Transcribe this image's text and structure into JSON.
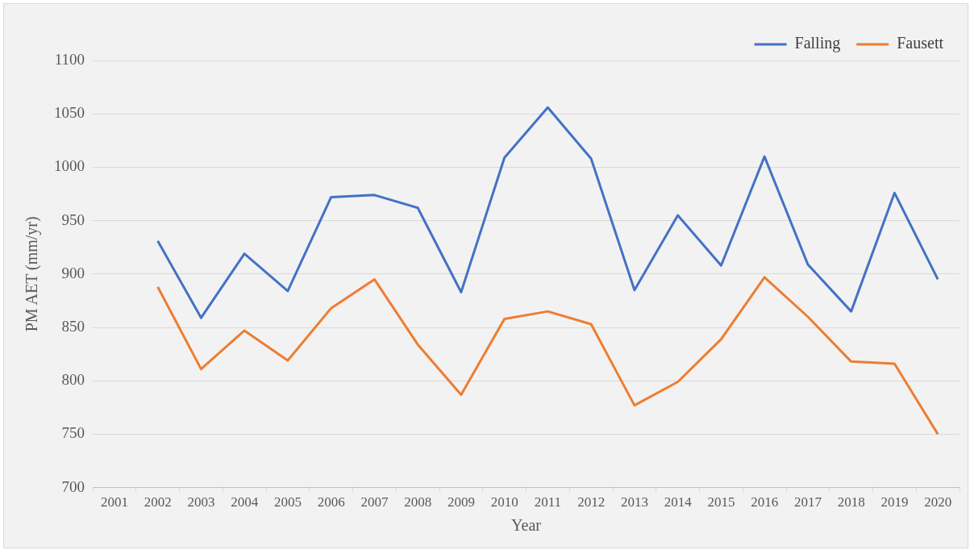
{
  "chart_data": {
    "type": "line",
    "xlabel": "Year",
    "ylabel": "PM AET (mm/yr)",
    "categories": [
      "2001",
      "2002",
      "2003",
      "2004",
      "2005",
      "2006",
      "2007",
      "2008",
      "2009",
      "2010",
      "2011",
      "2012",
      "2013",
      "2014",
      "2015",
      "2016",
      "2017",
      "2018",
      "2019",
      "2020"
    ],
    "series": [
      {
        "name": "Falling",
        "color": "#4472c4",
        "values": [
          null,
          931,
          859,
          919,
          884,
          972,
          974,
          962,
          883,
          1009,
          1056,
          1008,
          885,
          955,
          908,
          1010,
          909,
          865,
          976,
          895
        ]
      },
      {
        "name": "Fausett",
        "color": "#ed7d31",
        "values": [
          null,
          888,
          811,
          847,
          819,
          868,
          895,
          834,
          787,
          858,
          865,
          853,
          777,
          799,
          839,
          897,
          860,
          818,
          816,
          750
        ]
      }
    ],
    "ylim": [
      700,
      1100
    ],
    "yticks": [
      700,
      750,
      800,
      850,
      900,
      950,
      1000,
      1050,
      1100
    ],
    "grid": "y",
    "legend": "top right",
    "marker": "none",
    "line_style": "solid"
  }
}
